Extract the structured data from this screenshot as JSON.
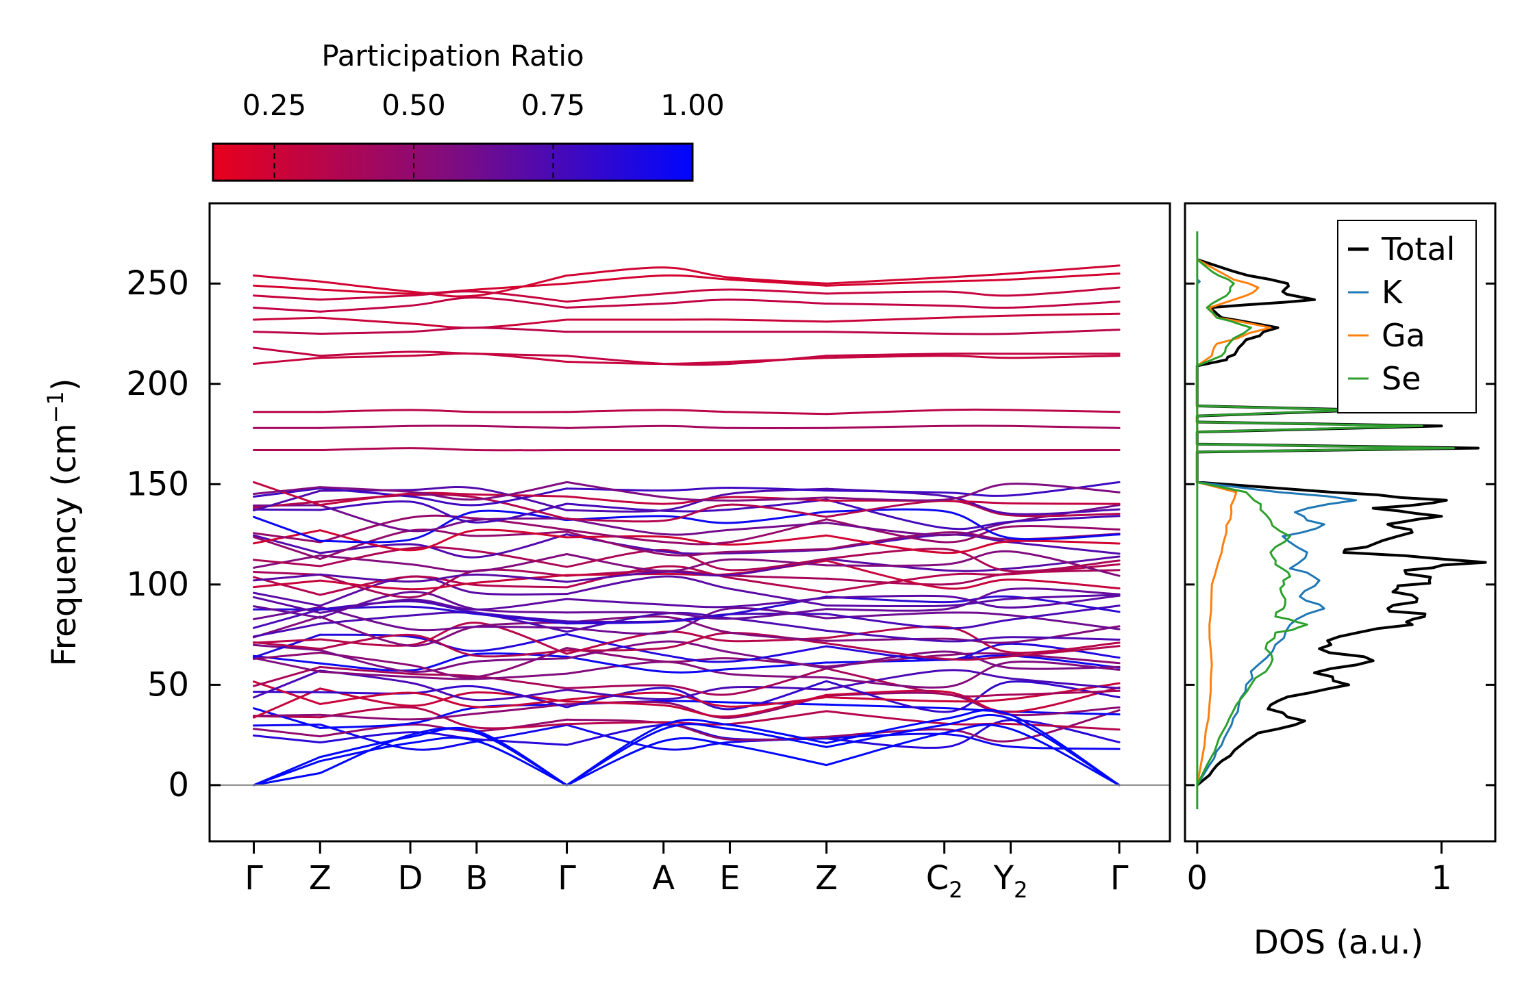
{
  "chart_data": [
    {
      "type": "line",
      "subtype": "phonon-band-structure",
      "ylabel": "Frequency (cm",
      "ylabel_sup": "−1",
      "ylabel_close": ")",
      "ylim": [
        -28,
        290
      ],
      "yticks": [
        0,
        50,
        100,
        150,
        200,
        250
      ],
      "ytick_labels": [
        "0",
        "50",
        "100",
        "150",
        "200",
        "250"
      ],
      "kpath": [
        {
          "label": "Γ",
          "sub": "",
          "pos": 0.0
        },
        {
          "label": "Z",
          "sub": "",
          "pos": 0.72
        },
        {
          "label": "D",
          "sub": "",
          "pos": 1.7
        },
        {
          "label": "B",
          "sub": "",
          "pos": 2.42
        },
        {
          "label": "Γ",
          "sub": "",
          "pos": 3.4
        },
        {
          "label": "A",
          "sub": "",
          "pos": 4.45
        },
        {
          "label": "E",
          "sub": "",
          "pos": 5.17
        },
        {
          "label": "Z",
          "sub": "",
          "pos": 6.22
        },
        {
          "label": "C",
          "sub": "2",
          "pos": 7.5
        },
        {
          "label": "Y",
          "sub": "2",
          "pos": 8.22
        },
        {
          "label": "Γ",
          "sub": "",
          "pos": 9.4
        }
      ],
      "xlim": [
        -0.48,
        9.95
      ],
      "segment_breaks": [
        0.72,
        3.4,
        6.22
      ],
      "colorbar": {
        "title": "Participation Ratio",
        "range": [
          0.14,
          1.0
        ],
        "ticks": [
          0.25,
          0.5,
          0.75,
          1.0
        ],
        "tick_labels": [
          "0.25",
          "0.50",
          "0.75",
          "1.00"
        ],
        "low_color": "#e8001c",
        "mid_color": "#7f0c80",
        "high_color": "#0006ff"
      },
      "high_bands": [
        {
          "f": [
            254,
            251,
            246,
            244,
            254,
            258,
            253,
            250,
            253,
            255,
            259
          ],
          "pr": 0.24
        },
        {
          "f": [
            249,
            247,
            245,
            247,
            250,
            254,
            252,
            249,
            251,
            252,
            255
          ],
          "pr": 0.22
        },
        {
          "f": [
            244,
            242,
            244,
            246,
            241,
            245,
            247,
            245,
            246,
            244,
            248
          ],
          "pr": 0.28
        },
        {
          "f": [
            238,
            236,
            239,
            243,
            238,
            240,
            242,
            240,
            239,
            238,
            241
          ],
          "pr": 0.3
        },
        {
          "f": [
            232,
            233,
            230,
            228,
            232,
            232,
            232,
            231,
            233,
            234,
            235
          ],
          "pr": 0.27
        },
        {
          "f": [
            226,
            225,
            226,
            228,
            226,
            226,
            226,
            226,
            225,
            225,
            227
          ],
          "pr": 0.33
        },
        {
          "f": [
            218,
            214,
            216,
            215,
            214,
            210,
            210,
            214,
            215,
            215,
            215
          ],
          "pr": 0.3
        },
        {
          "f": [
            210,
            213,
            214,
            215,
            211,
            210,
            211,
            213,
            214,
            213,
            214
          ],
          "pr": 0.28
        }
      ],
      "mid_bands": [
        {
          "f": [
            186,
            186,
            187,
            186,
            186,
            187,
            186,
            185,
            187,
            187,
            186
          ],
          "pr": 0.33
        },
        {
          "f": [
            178,
            178,
            179,
            179,
            178,
            179,
            178,
            178,
            179,
            179,
            178
          ],
          "pr": 0.42
        },
        {
          "f": [
            167,
            167,
            168,
            167,
            167,
            167,
            167,
            167,
            167,
            167,
            167
          ],
          "pr": 0.37
        }
      ],
      "acoustic_bands": [
        {
          "f": [
            0,
            14,
            24,
            27,
            0,
            28,
            28,
            19,
            30,
            33,
            0
          ],
          "pr": 1.0
        },
        {
          "f": [
            0,
            12,
            21,
            22,
            0,
            22,
            20,
            10,
            26,
            28,
            0
          ],
          "pr": 1.0
        },
        {
          "f": [
            0,
            6,
            25,
            26,
            0,
            30,
            30,
            21,
            33,
            35,
            0
          ],
          "pr": 1.0
        }
      ],
      "low_band_region": {
        "min": 22,
        "max": 151,
        "count": 44
      }
    },
    {
      "type": "line",
      "subtype": "density-of-states",
      "xlabel": "DOS (a.u.)",
      "xlim": [
        -0.05,
        1.22
      ],
      "xticks": [
        0,
        1
      ],
      "xtick_labels": [
        "0",
        "1"
      ],
      "ylim": [
        -28,
        290
      ],
      "legend": [
        {
          "name": "Total",
          "color": "#000000"
        },
        {
          "name": "K",
          "color": "#1f77b4"
        },
        {
          "name": "Ga",
          "color": "#ff7f0e"
        },
        {
          "name": "Se",
          "color": "#2ca02c"
        }
      ],
      "legend_position": "top-right",
      "series": [
        {
          "name": "Total",
          "peaks": [
            [
              0,
              0.0
            ],
            [
              5,
              0.05
            ],
            [
              12,
              0.1
            ],
            [
              20,
              0.18
            ],
            [
              26,
              0.25
            ],
            [
              32,
              0.44
            ],
            [
              38,
              0.29
            ],
            [
              44,
              0.37
            ],
            [
              50,
              0.62
            ],
            [
              56,
              0.48
            ],
            [
              62,
              0.72
            ],
            [
              68,
              0.5
            ],
            [
              74,
              0.58
            ],
            [
              80,
              0.88
            ],
            [
              84,
              0.93
            ],
            [
              88,
              0.78
            ],
            [
              93,
              0.9
            ],
            [
              98,
              0.82
            ],
            [
              102,
              0.95
            ],
            [
              107,
              0.85
            ],
            [
              111,
              1.18
            ],
            [
              116,
              0.6
            ],
            [
              120,
              0.72
            ],
            [
              126,
              0.88
            ],
            [
              130,
              0.78
            ],
            [
              134,
              1.0
            ],
            [
              138,
              0.72
            ],
            [
              142,
              1.02
            ],
            [
              146,
              0.55
            ],
            [
              151,
              0.0
            ],
            [
              166,
              0.0
            ],
            [
              168,
              1.15
            ],
            [
              170,
              0.0
            ],
            [
              176,
              0.0
            ],
            [
              179,
              1.0
            ],
            [
              181,
              0.0
            ],
            [
              184,
              0.0
            ],
            [
              187,
              0.7
            ],
            [
              189,
              0.0
            ],
            [
              209,
              0.0
            ],
            [
              212,
              0.12
            ],
            [
              216,
              0.16
            ],
            [
              222,
              0.2
            ],
            [
              228,
              0.33
            ],
            [
              233,
              0.1
            ],
            [
              238,
              0.05
            ],
            [
              242,
              0.48
            ],
            [
              246,
              0.35
            ],
            [
              250,
              0.37
            ],
            [
              256,
              0.15
            ],
            [
              262,
              0.0
            ]
          ]
        },
        {
          "name": "K",
          "peaks": [
            [
              0,
              0.0
            ],
            [
              10,
              0.05
            ],
            [
              20,
              0.1
            ],
            [
              30,
              0.14
            ],
            [
              40,
              0.17
            ],
            [
              50,
              0.2
            ],
            [
              60,
              0.25
            ],
            [
              70,
              0.32
            ],
            [
              80,
              0.38
            ],
            [
              88,
              0.52
            ],
            [
              94,
              0.42
            ],
            [
              102,
              0.5
            ],
            [
              108,
              0.38
            ],
            [
              116,
              0.45
            ],
            [
              124,
              0.35
            ],
            [
              130,
              0.52
            ],
            [
              136,
              0.4
            ],
            [
              142,
              0.65
            ],
            [
              148,
              0.2
            ],
            [
              151,
              0.0
            ],
            [
              250,
              0.0
            ],
            [
              251,
              0.01
            ],
            [
              252,
              0.0
            ]
          ]
        },
        {
          "name": "Ga",
          "peaks": [
            [
              0,
              0.0
            ],
            [
              20,
              0.03
            ],
            [
              40,
              0.05
            ],
            [
              60,
              0.06
            ],
            [
              80,
              0.05
            ],
            [
              100,
              0.06
            ],
            [
              116,
              0.1
            ],
            [
              126,
              0.12
            ],
            [
              136,
              0.14
            ],
            [
              146,
              0.16
            ],
            [
              151,
              0.0
            ],
            [
              209,
              0.0
            ],
            [
              214,
              0.06
            ],
            [
              220,
              0.08
            ],
            [
              228,
              0.3
            ],
            [
              233,
              0.08
            ],
            [
              238,
              0.05
            ],
            [
              244,
              0.2
            ],
            [
              248,
              0.25
            ],
            [
              254,
              0.12
            ],
            [
              262,
              0.0
            ]
          ]
        },
        {
          "name": "Se",
          "peaks": [
            [
              0,
              0.0
            ],
            [
              10,
              0.04
            ],
            [
              20,
              0.08
            ],
            [
              30,
              0.12
            ],
            [
              40,
              0.16
            ],
            [
              50,
              0.22
            ],
            [
              60,
              0.3
            ],
            [
              68,
              0.28
            ],
            [
              76,
              0.32
            ],
            [
              80,
              0.45
            ],
            [
              84,
              0.32
            ],
            [
              90,
              0.36
            ],
            [
              98,
              0.34
            ],
            [
              104,
              0.38
            ],
            [
              110,
              0.32
            ],
            [
              116,
              0.3
            ],
            [
              124,
              0.38
            ],
            [
              132,
              0.3
            ],
            [
              140,
              0.26
            ],
            [
              146,
              0.2
            ],
            [
              151,
              0.0
            ],
            [
              166,
              0.0
            ],
            [
              168,
              1.05
            ],
            [
              170,
              0.0
            ],
            [
              176,
              0.0
            ],
            [
              179,
              0.92
            ],
            [
              181,
              0.0
            ],
            [
              184,
              0.0
            ],
            [
              187,
              0.65
            ],
            [
              189,
              0.0
            ],
            [
              209,
              0.0
            ],
            [
              214,
              0.1
            ],
            [
              220,
              0.13
            ],
            [
              228,
              0.22
            ],
            [
              233,
              0.08
            ],
            [
              238,
              0.04
            ],
            [
              244,
              0.12
            ],
            [
              250,
              0.15
            ],
            [
              256,
              0.06
            ],
            [
              262,
              0.0
            ]
          ]
        }
      ]
    }
  ]
}
